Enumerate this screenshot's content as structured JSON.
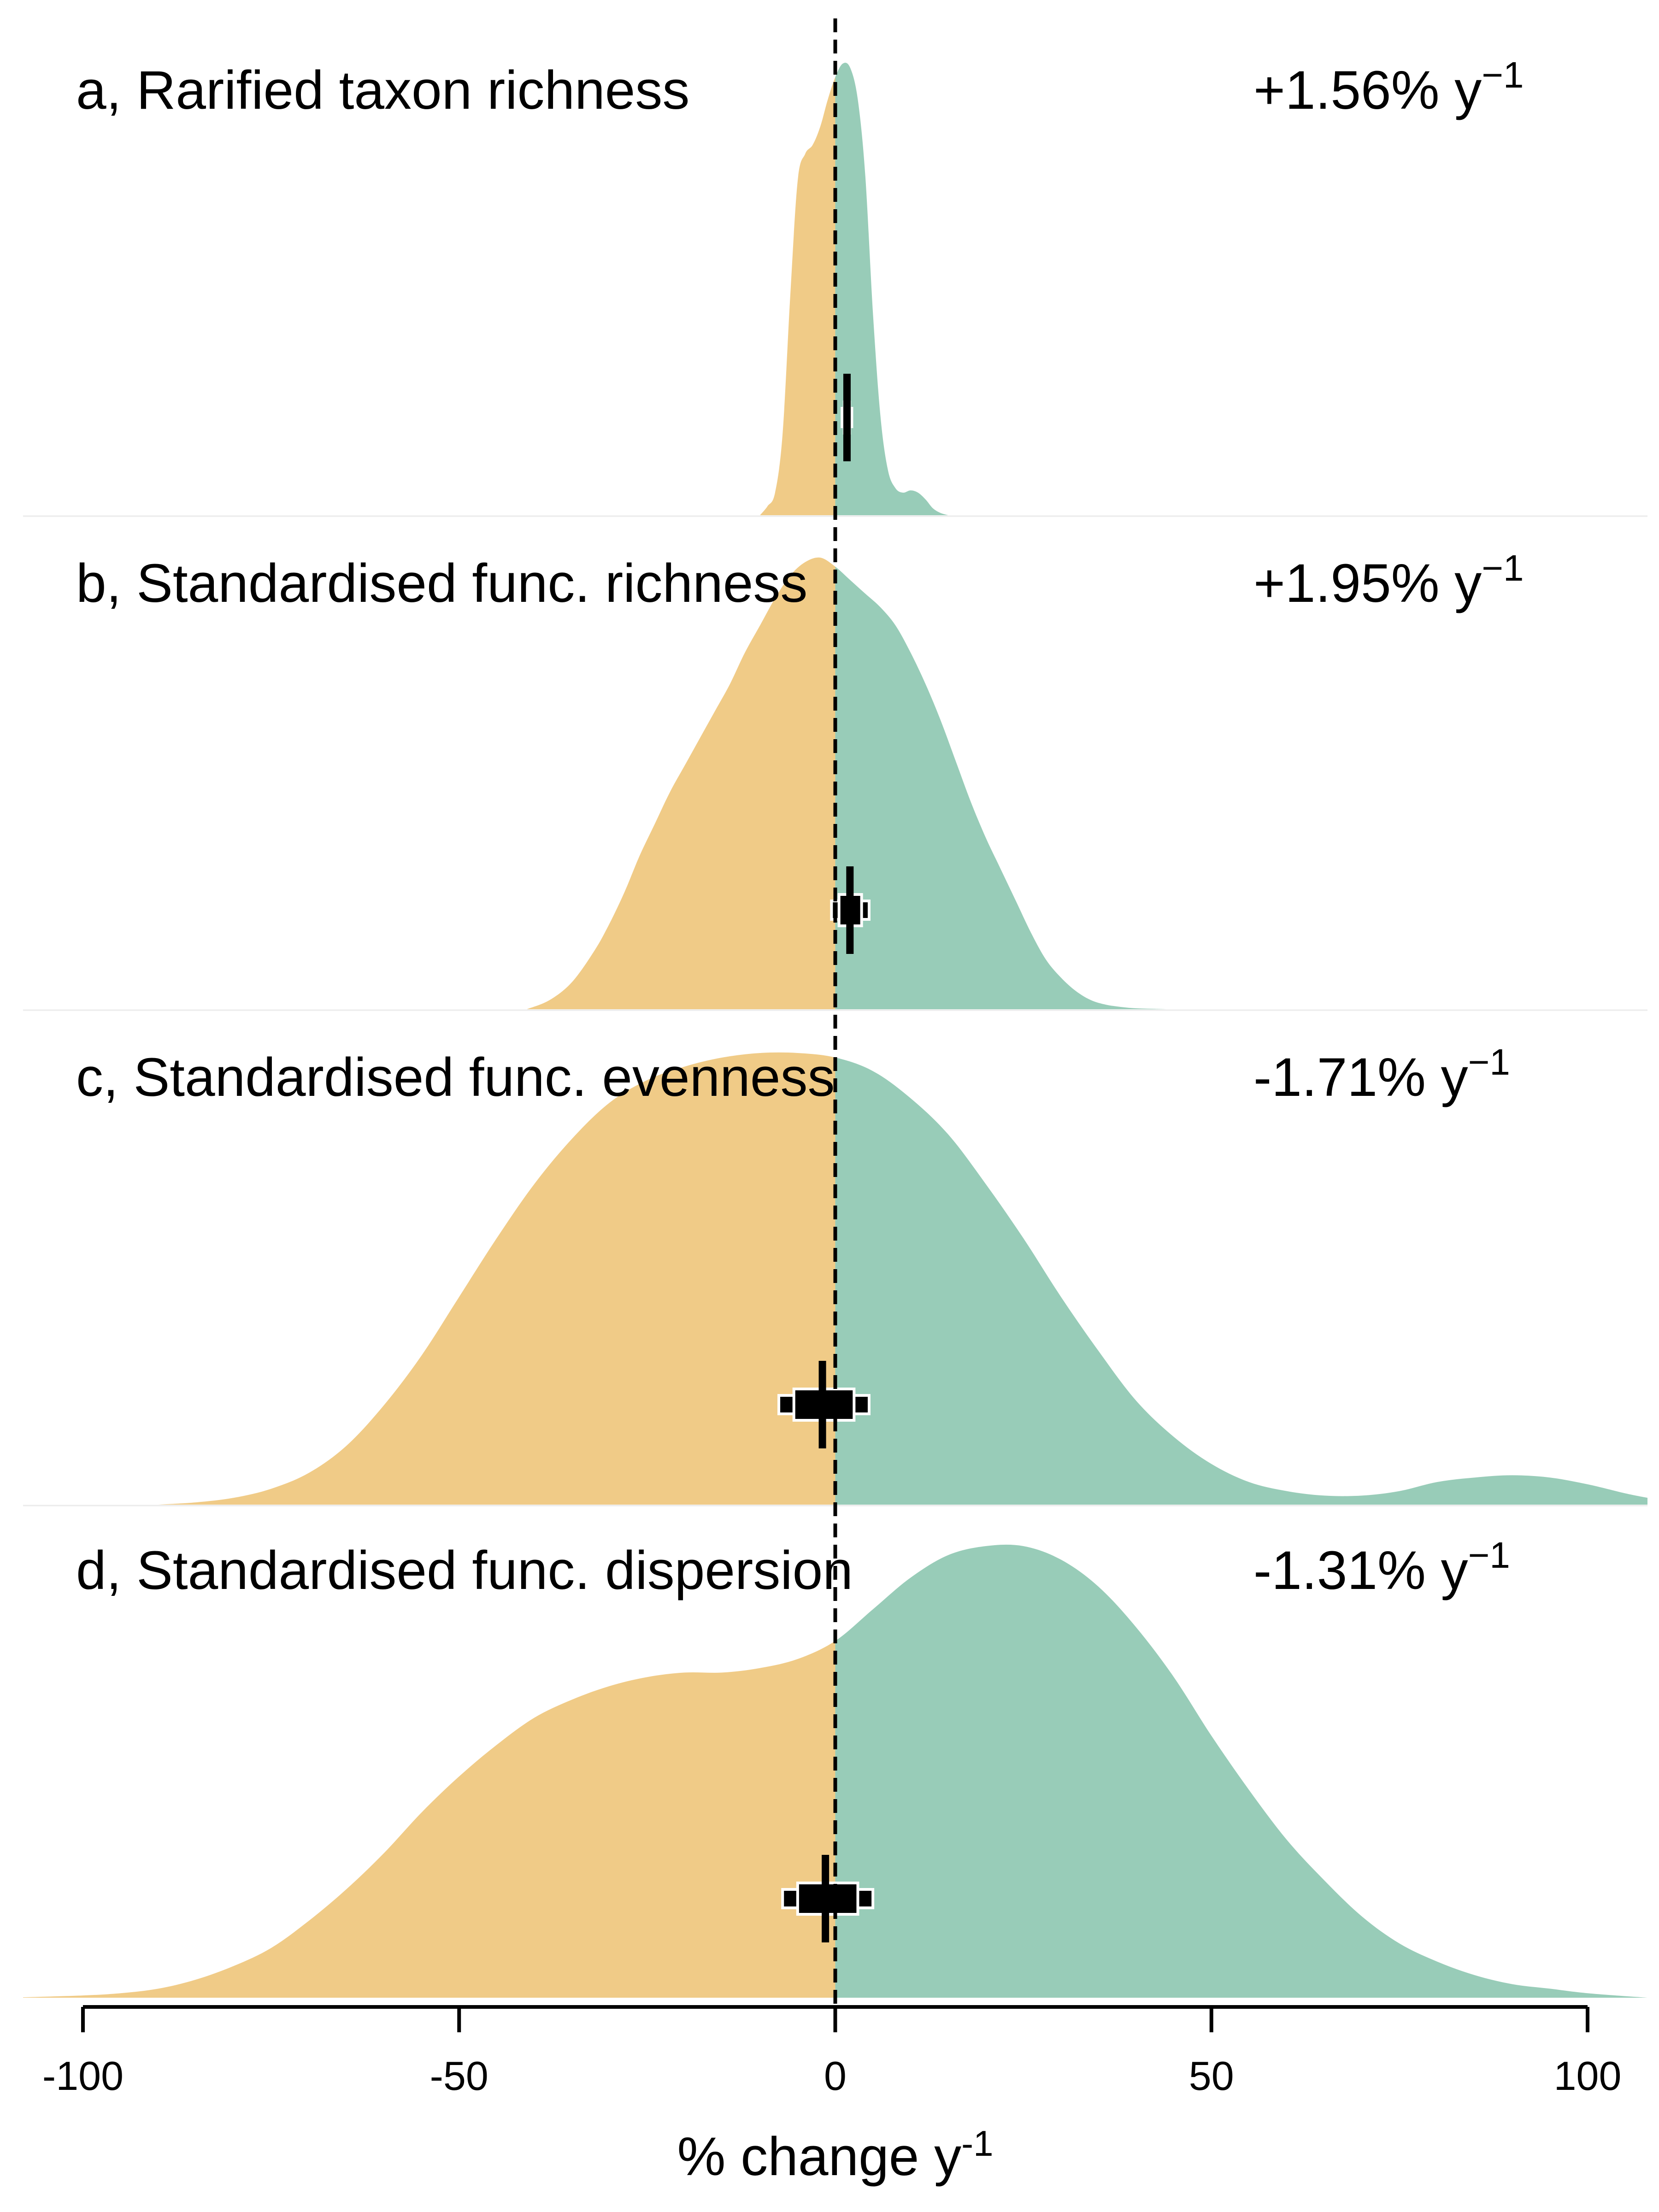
{
  "chart_data": {
    "type": "area",
    "xlabel": "% change y-1",
    "xlim": [
      -105,
      108
    ],
    "xticks": [
      -100,
      -50,
      0,
      50,
      100
    ],
    "xtick_labels": [
      "-100",
      "-50",
      "0",
      "50",
      "100"
    ],
    "reference_line_x": 0,
    "colors": {
      "negative": "#f0cb87",
      "positive": "#98ccb8",
      "summary": "#000000",
      "reference_line": "#000000"
    },
    "panels": [
      {
        "label": "a, Rarified taxon richness",
        "rate": "+1.56% y",
        "rate_exponent": "−1",
        "estimate": 1.56,
        "interval_66": [
          1.2,
          1.9
        ],
        "interval_95": [
          0.9,
          2.2
        ],
        "density": {
          "x": [
            -10,
            -9,
            -8,
            -7,
            -6,
            -5,
            -4,
            -3,
            -2,
            -1,
            0,
            1,
            2,
            3,
            4,
            5,
            6,
            7,
            8,
            9,
            10,
            11,
            12,
            13,
            14,
            15
          ],
          "y": [
            0,
            0.02,
            0.05,
            0.18,
            0.48,
            0.74,
            0.8,
            0.82,
            0.86,
            0.92,
            0.97,
            1.0,
            0.99,
            0.92,
            0.75,
            0.45,
            0.22,
            0.1,
            0.06,
            0.05,
            0.055,
            0.05,
            0.035,
            0.015,
            0.005,
            0
          ]
        }
      },
      {
        "label": "b, Standardised func. richness",
        "rate": "+1.95% y",
        "rate_exponent": "−1",
        "estimate": 1.95,
        "interval_66": [
          0.5,
          3.5
        ],
        "interval_95": [
          -0.5,
          4.5
        ],
        "density": {
          "x": [
            -41,
            -38,
            -35,
            -32,
            -30,
            -28,
            -26,
            -24,
            -22,
            -20,
            -18,
            -16,
            -14,
            -12,
            -10,
            -8,
            -6,
            -4,
            -2,
            0,
            2,
            4,
            6,
            8,
            10,
            12,
            14,
            16,
            18,
            20,
            22,
            24,
            26,
            28,
            30,
            32,
            34,
            36,
            38,
            40,
            42,
            44
          ],
          "y": [
            0,
            0.02,
            0.06,
            0.13,
            0.19,
            0.26,
            0.34,
            0.41,
            0.48,
            0.54,
            0.6,
            0.66,
            0.72,
            0.79,
            0.85,
            0.91,
            0.96,
            0.99,
            1.0,
            0.98,
            0.95,
            0.92,
            0.89,
            0.85,
            0.79,
            0.72,
            0.64,
            0.55,
            0.46,
            0.38,
            0.31,
            0.24,
            0.17,
            0.11,
            0.07,
            0.04,
            0.02,
            0.01,
            0.005,
            0.002,
            0.001,
            0
          ]
        }
      },
      {
        "label": "c, Standardised func. evenness",
        "rate": "-1.71% y",
        "rate_exponent": "−1",
        "estimate": -1.71,
        "interval_66": [
          -5.5,
          2.5
        ],
        "interval_95": [
          -7.5,
          4.5
        ],
        "density": {
          "x": [
            -90,
            -85,
            -80,
            -75,
            -70,
            -65,
            -60,
            -55,
            -50,
            -45,
            -40,
            -35,
            -30,
            -25,
            -20,
            -15,
            -10,
            -5,
            0,
            5,
            10,
            15,
            20,
            25,
            30,
            35,
            40,
            45,
            50,
            55,
            60,
            65,
            70,
            75,
            80,
            85,
            90,
            95,
            100,
            105,
            108
          ],
          "y": [
            0,
            0.005,
            0.015,
            0.035,
            0.07,
            0.13,
            0.22,
            0.33,
            0.46,
            0.59,
            0.71,
            0.81,
            0.89,
            0.94,
            0.97,
            0.99,
            1.0,
            1.0,
            0.99,
            0.96,
            0.9,
            0.82,
            0.71,
            0.59,
            0.46,
            0.34,
            0.23,
            0.15,
            0.09,
            0.05,
            0.03,
            0.02,
            0.02,
            0.03,
            0.05,
            0.06,
            0.065,
            0.06,
            0.045,
            0.025,
            0.015
          ]
        }
      },
      {
        "label": "d, Standardised func. dispersion",
        "rate": "-1.31% y",
        "rate_exponent": "−1",
        "estimate": -1.31,
        "interval_66": [
          -5,
          3
        ],
        "interval_95": [
          -7,
          5
        ],
        "density": {
          "x": [
            -110,
            -100,
            -95,
            -90,
            -85,
            -80,
            -75,
            -70,
            -65,
            -60,
            -55,
            -50,
            -45,
            -40,
            -35,
            -30,
            -25,
            -20,
            -15,
            -10,
            -5,
            0,
            5,
            10,
            15,
            20,
            25,
            30,
            35,
            40,
            45,
            50,
            55,
            60,
            65,
            70,
            75,
            80,
            85,
            90,
            95,
            100,
            108
          ],
          "y": [
            0,
            0.005,
            0.01,
            0.02,
            0.04,
            0.07,
            0.11,
            0.17,
            0.24,
            0.32,
            0.41,
            0.49,
            0.56,
            0.62,
            0.66,
            0.69,
            0.71,
            0.72,
            0.72,
            0.73,
            0.75,
            0.79,
            0.86,
            0.93,
            0.98,
            1.0,
            1.0,
            0.97,
            0.91,
            0.82,
            0.71,
            0.58,
            0.46,
            0.35,
            0.26,
            0.18,
            0.12,
            0.08,
            0.05,
            0.03,
            0.02,
            0.01,
            0
          ]
        }
      }
    ]
  }
}
